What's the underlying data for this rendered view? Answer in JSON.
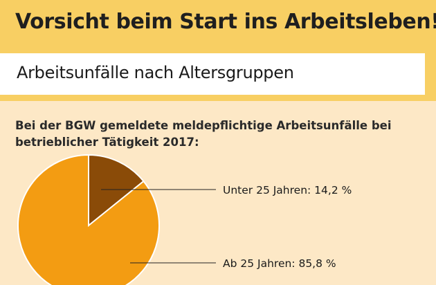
{
  "header": {
    "title": "Vorsicht beim Start ins Arbeitsleben!"
  },
  "subheader": {
    "title": "Arbeitsunfälle nach Altersgruppen"
  },
  "description": "Bei der BGW gemeldete meldepflichtige Arbeitsunfälle bei betrieblicher Tätigkeit 2017:",
  "colors": {
    "header_bg": "#f8cf63",
    "content_bg": "#fde8c6",
    "slice_young": "#8a4b08",
    "slice_older": "#f39c12"
  },
  "chart_data": {
    "type": "pie",
    "title": "Bei der BGW gemeldete meldepflichtige Arbeitsunfälle bei betrieblicher Tätigkeit 2017:",
    "slices": [
      {
        "label": "Unter 25 Jahren: 14,2 %",
        "value": 14.2,
        "color": "#8a4b08"
      },
      {
        "label": "Ab 25 Jahren: 85,8 %",
        "value": 85.8,
        "color": "#f39c12"
      }
    ]
  }
}
